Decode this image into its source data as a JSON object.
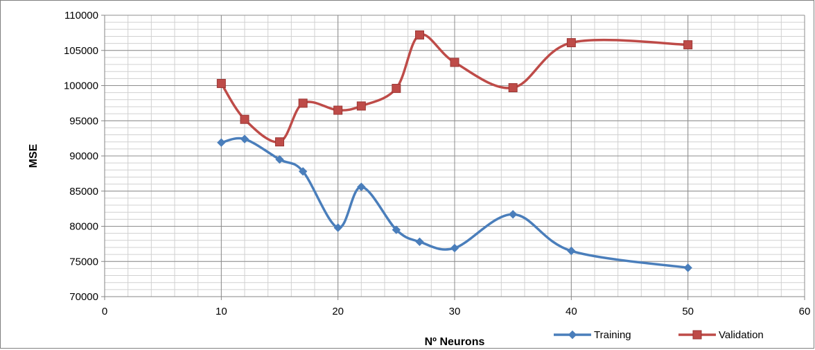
{
  "chart_data": {
    "type": "line",
    "title": "",
    "xlabel": "Nº Neurons",
    "ylabel": "MSE",
    "xlim": [
      0,
      60
    ],
    "ylim": [
      70000,
      110000
    ],
    "x_ticks": [
      0,
      10,
      20,
      30,
      40,
      50,
      60
    ],
    "y_ticks": [
      70000,
      75000,
      80000,
      85000,
      90000,
      95000,
      100000,
      105000,
      110000
    ],
    "x_ticks_labels": [
      "0",
      "10",
      "20",
      "30",
      "40",
      "50",
      "60"
    ],
    "y_ticks_labels": [
      "70000",
      "75000",
      "80000",
      "85000",
      "90000",
      "95000",
      "100000",
      "105000",
      "110000"
    ],
    "grid": true,
    "smooth": true,
    "legend_position": "bottom-right",
    "series": [
      {
        "name": "Training",
        "color": "#4a7ebb",
        "marker": "diamond",
        "x": [
          10,
          12,
          15,
          17,
          20,
          22,
          25,
          27,
          30,
          35,
          40,
          50
        ],
        "y": [
          91900,
          92400,
          89500,
          87800,
          79800,
          85600,
          79500,
          77800,
          76900,
          81700,
          76500,
          74100
        ]
      },
      {
        "name": "Validation",
        "color": "#be4b48",
        "marker": "square",
        "x": [
          10,
          12,
          15,
          17,
          20,
          22,
          25,
          27,
          30,
          35,
          40,
          50
        ],
        "y": [
          100300,
          95200,
          92000,
          97500,
          96500,
          97100,
          99600,
          107200,
          103300,
          99700,
          106100,
          105800
        ]
      }
    ]
  }
}
